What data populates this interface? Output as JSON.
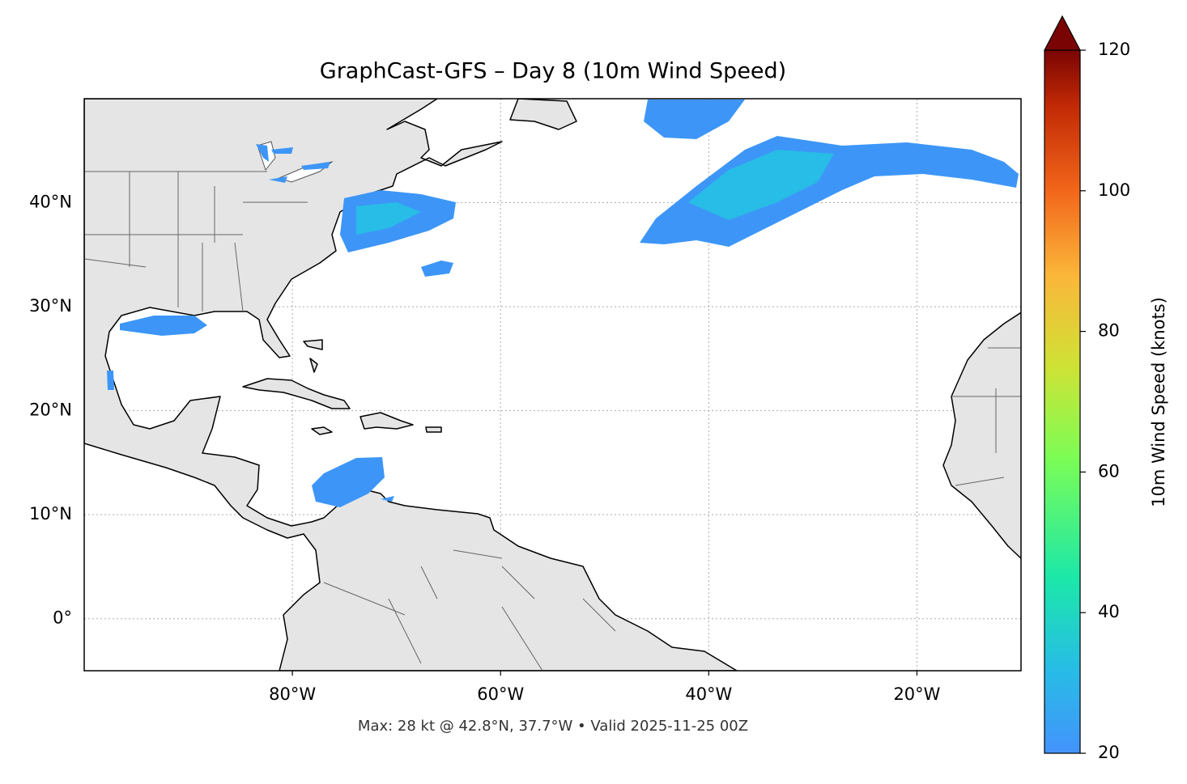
{
  "chart_data": {
    "type": "map",
    "title": "GraphCast-GFS – Day 8 (10m Wind Speed)",
    "subtitle": "Max: 28 kt @ 42.8°N, 37.7°W • Valid 2025-11-25 00Z",
    "xlim": [
      -100,
      -10
    ],
    "ylim": [
      -5,
      50
    ],
    "xticks": [
      {
        "value": -80,
        "label": "80°W"
      },
      {
        "value": -60,
        "label": "60°W"
      },
      {
        "value": -40,
        "label": "40°W"
      },
      {
        "value": -20,
        "label": "20°W"
      }
    ],
    "yticks": [
      {
        "value": 0,
        "label": "0°"
      },
      {
        "value": 10,
        "label": "10°N"
      },
      {
        "value": 20,
        "label": "20°N"
      },
      {
        "value": 30,
        "label": "30°N"
      },
      {
        "value": 40,
        "label": "40°N"
      }
    ],
    "grid": true,
    "colorbar_label": "10m Wind Speed (knots)",
    "colorbar_lim": [
      20,
      120
    ],
    "colorbar_ticks": [
      20,
      40,
      60,
      80,
      100,
      120
    ]
  }
}
